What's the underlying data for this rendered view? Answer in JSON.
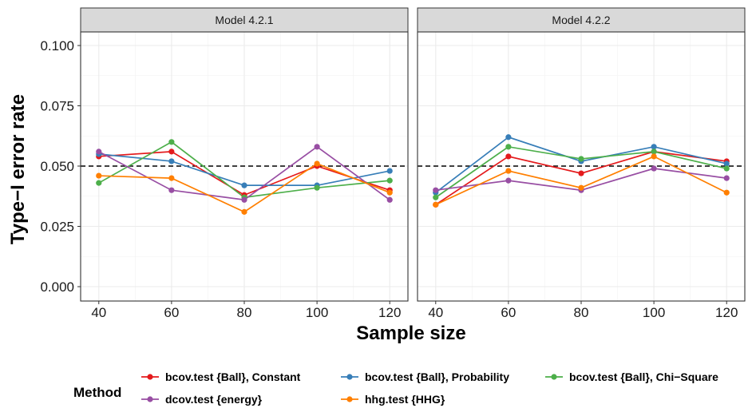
{
  "chart_data": {
    "type": "line",
    "xlabel": "Sample size",
    "ylabel": "Type−I error rate",
    "x": [
      40,
      60,
      80,
      100,
      120
    ],
    "xlim": [
      35,
      125
    ],
    "ylim": [
      -0.005,
      0.105
    ],
    "yticks": [
      "0.000",
      "0.025",
      "0.050",
      "0.075",
      "0.100"
    ],
    "xticks": [
      "40",
      "60",
      "80",
      "100",
      "120"
    ],
    "reference_line": 0.05,
    "grid": true,
    "legend_title": "Method",
    "legend_position": "bottom",
    "series": [
      {
        "name": "bcov.test {Ball}, Constant",
        "color": "#E41A1C"
      },
      {
        "name": "bcov.test {Ball}, Probability",
        "color": "#377EB8"
      },
      {
        "name": "bcov.test {Ball}, Chi−Square",
        "color": "#4DAF4A"
      },
      {
        "name": "dcov.test {energy}",
        "color": "#984EA3"
      },
      {
        "name": "hhg.test {HHG}",
        "color": "#FF7F00"
      }
    ],
    "panels": [
      {
        "title": "Model 4.2.1",
        "values": [
          [
            0.054,
            0.056,
            0.038,
            0.05,
            0.04
          ],
          [
            0.055,
            0.052,
            0.042,
            0.042,
            0.048
          ],
          [
            0.043,
            0.06,
            0.037,
            0.041,
            0.044
          ],
          [
            0.056,
            0.04,
            0.036,
            0.058,
            0.036
          ],
          [
            0.046,
            0.045,
            0.031,
            0.051,
            0.039
          ]
        ]
      },
      {
        "title": "Model 4.2.2",
        "values": [
          [
            0.034,
            0.054,
            0.047,
            0.056,
            0.052
          ],
          [
            0.039,
            0.062,
            0.052,
            0.058,
            0.051
          ],
          [
            0.037,
            0.058,
            0.053,
            0.056,
            0.049
          ],
          [
            0.04,
            0.044,
            0.04,
            0.049,
            0.045
          ],
          [
            0.034,
            0.048,
            0.041,
            0.054,
            0.039
          ]
        ]
      }
    ]
  }
}
